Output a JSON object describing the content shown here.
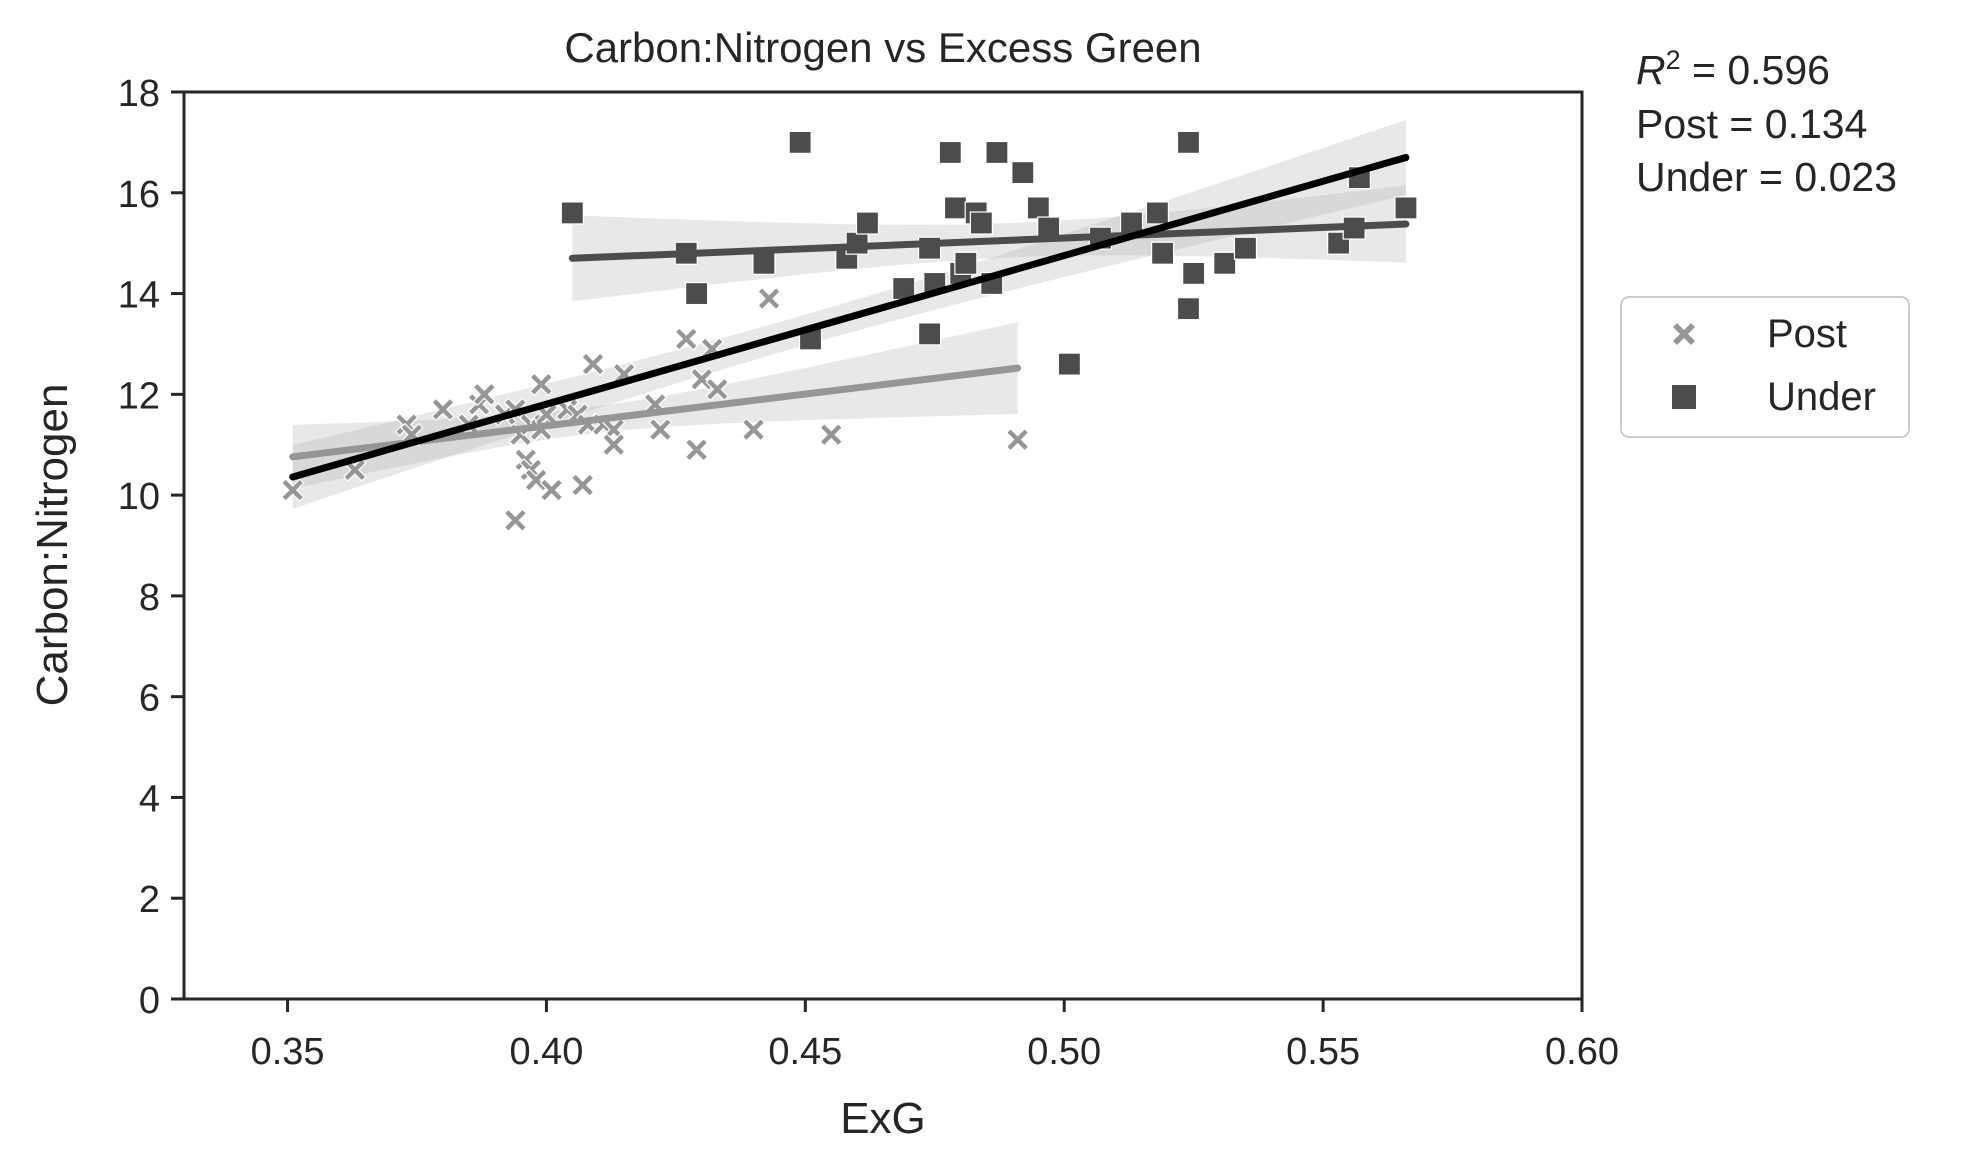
{
  "chart_data": {
    "type": "scatter",
    "title": "Carbon:Nitrogen vs Excess Green",
    "xlabel": "ExG",
    "ylabel": "Carbon:Nitrogen",
    "xlim": [
      0.33,
      0.6
    ],
    "ylim": [
      0,
      18
    ],
    "xticks": [
      "0.35",
      "0.40",
      "0.45",
      "0.50",
      "0.55",
      "0.60"
    ],
    "yticks": [
      "0",
      "2",
      "4",
      "6",
      "8",
      "10",
      "12",
      "14",
      "16",
      "18"
    ],
    "grid": false,
    "legend_position": "outside-right",
    "annotations": {
      "r2_symbol": "R",
      "r2_superscript": "2",
      "r2_value": " = 0.596",
      "post_line": "Post = 0.134",
      "under_line": "Under = 0.023"
    },
    "series": [
      {
        "name": "Post",
        "marker": "x",
        "color": "#969696",
        "points": [
          [
            0.351,
            10.1
          ],
          [
            0.363,
            10.5
          ],
          [
            0.373,
            11.4
          ],
          [
            0.374,
            11.2
          ],
          [
            0.38,
            11.7
          ],
          [
            0.385,
            11.4
          ],
          [
            0.387,
            11.8
          ],
          [
            0.388,
            12.0
          ],
          [
            0.392,
            11.6
          ],
          [
            0.394,
            11.7
          ],
          [
            0.394,
            9.5
          ],
          [
            0.395,
            11.2
          ],
          [
            0.396,
            10.7
          ],
          [
            0.397,
            11.4
          ],
          [
            0.397,
            10.5
          ],
          [
            0.398,
            10.3
          ],
          [
            0.399,
            11.3
          ],
          [
            0.399,
            12.2
          ],
          [
            0.4,
            11.6
          ],
          [
            0.401,
            10.1
          ],
          [
            0.404,
            11.7
          ],
          [
            0.406,
            11.6
          ],
          [
            0.407,
            10.2
          ],
          [
            0.408,
            11.4
          ],
          [
            0.409,
            12.6
          ],
          [
            0.411,
            11.4
          ],
          [
            0.413,
            11.3
          ],
          [
            0.413,
            11.0
          ],
          [
            0.415,
            12.4
          ],
          [
            0.421,
            11.8
          ],
          [
            0.422,
            11.3
          ],
          [
            0.427,
            13.1
          ],
          [
            0.429,
            10.9
          ],
          [
            0.43,
            12.3
          ],
          [
            0.432,
            12.9
          ],
          [
            0.433,
            12.1
          ],
          [
            0.44,
            11.3
          ],
          [
            0.443,
            13.9
          ],
          [
            0.455,
            11.2
          ],
          [
            0.491,
            11.1
          ]
        ],
        "fit": {
          "x": [
            0.351,
            0.491
          ],
          "y": [
            10.76,
            12.52
          ]
        }
      },
      {
        "name": "Under",
        "marker": "square",
        "color": "#4c4c4c",
        "points": [
          [
            0.405,
            15.6
          ],
          [
            0.427,
            14.8
          ],
          [
            0.429,
            14.0
          ],
          [
            0.442,
            14.6
          ],
          [
            0.449,
            17.0
          ],
          [
            0.451,
            13.1
          ],
          [
            0.458,
            14.7
          ],
          [
            0.46,
            15.0
          ],
          [
            0.462,
            15.4
          ],
          [
            0.469,
            14.1
          ],
          [
            0.474,
            14.9
          ],
          [
            0.474,
            13.2
          ],
          [
            0.475,
            14.2
          ],
          [
            0.478,
            16.8
          ],
          [
            0.479,
            15.7
          ],
          [
            0.48,
            14.4
          ],
          [
            0.481,
            14.6
          ],
          [
            0.483,
            15.6
          ],
          [
            0.484,
            15.4
          ],
          [
            0.486,
            14.2
          ],
          [
            0.487,
            16.8
          ],
          [
            0.492,
            16.4
          ],
          [
            0.495,
            15.7
          ],
          [
            0.497,
            15.3
          ],
          [
            0.501,
            12.6
          ],
          [
            0.507,
            15.1
          ],
          [
            0.513,
            15.4
          ],
          [
            0.518,
            15.6
          ],
          [
            0.519,
            14.8
          ],
          [
            0.524,
            13.7
          ],
          [
            0.524,
            17.0
          ],
          [
            0.525,
            14.4
          ],
          [
            0.531,
            14.6
          ],
          [
            0.535,
            14.9
          ],
          [
            0.553,
            15.0
          ],
          [
            0.556,
            15.3
          ],
          [
            0.557,
            16.3
          ],
          [
            0.566,
            15.7
          ]
        ],
        "fit": {
          "x": [
            0.405,
            0.566
          ],
          "y": [
            14.7,
            15.38
          ]
        }
      }
    ],
    "overall_fit": {
      "color": "#000000",
      "x": [
        0.351,
        0.566
      ],
      "y": [
        10.36,
        16.7
      ]
    }
  }
}
